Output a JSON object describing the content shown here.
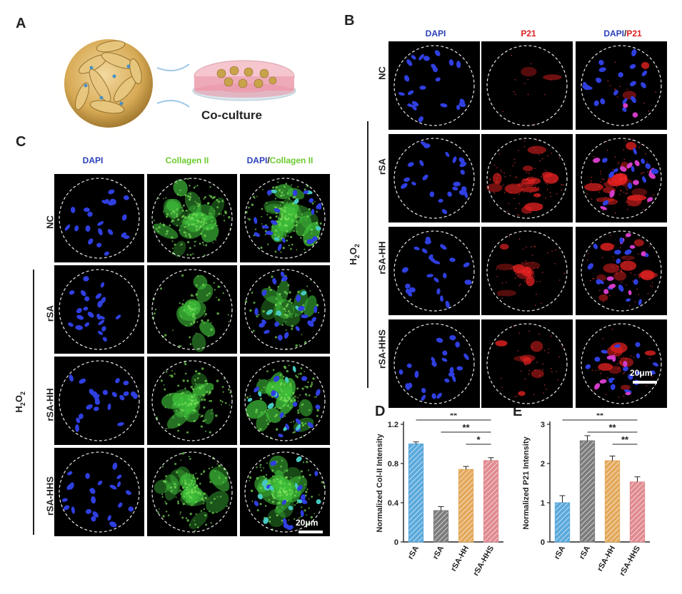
{
  "panel_labels": {
    "a": "A",
    "b": "B",
    "c": "C",
    "d": "D",
    "e": "E"
  },
  "panel_a": {
    "caption": "Co-culture"
  },
  "panel_b": {
    "channels": [
      "DAPI",
      "P21",
      "DAPI/P21"
    ],
    "channel_split": {
      "first": "DAPI",
      "sep": "/",
      "second": "P21"
    },
    "rows": [
      "NC",
      "rSA",
      "rSA-HH",
      "rSA-HHS"
    ],
    "group_label": "H2O2",
    "scale_bar": "20μm"
  },
  "panel_c": {
    "channels": [
      "DAPI",
      "Collagen II",
      "DAPI/Collagen II"
    ],
    "channel_split": {
      "first": "DAPI",
      "sep": "/",
      "second": "Collagen II"
    },
    "rows": [
      "NC",
      "rSA",
      "rSA-HH",
      "rSA-HHS"
    ],
    "group_label": "H2O2",
    "scale_bar": "20μm"
  },
  "colors": {
    "dapi": "#2a3fb8",
    "p21": "#e02020",
    "collagen": "#6ccb2f",
    "bar_blue": "#5aa9dc",
    "bar_gray": "#7c7c7c",
    "bar_orange": "#e3a85a",
    "bar_red": "#e08a8f"
  },
  "chart_data": [
    {
      "type": "bar",
      "panel": "D",
      "categories": [
        "rSA",
        "rSA",
        "rSA-HH",
        "rSA-HHS"
      ],
      "values": [
        1.0,
        0.32,
        0.74,
        0.83
      ],
      "errors": [
        0.02,
        0.04,
        0.03,
        0.03
      ],
      "ylabel": "Normalized Col-II Intensity",
      "ylim": [
        0,
        1.2
      ],
      "yticks": [
        0,
        0.4,
        0.8,
        1.2
      ],
      "ytick_labels": [
        "0",
        "0.4",
        "0.8",
        "1.2"
      ],
      "significance": [
        {
          "from": 0,
          "to": 3,
          "label": "**"
        },
        {
          "from": 1,
          "to": 3,
          "label": "**"
        },
        {
          "from": 2,
          "to": 3,
          "label": "*"
        }
      ]
    },
    {
      "type": "bar",
      "panel": "E",
      "categories": [
        "rSA",
        "rSA",
        "rSA-HH",
        "rSA-HHS"
      ],
      "values": [
        1.0,
        2.58,
        2.07,
        1.53
      ],
      "errors": [
        0.18,
        0.13,
        0.12,
        0.13
      ],
      "ylabel": "Normalized P21 Intensity",
      "ylim": [
        0,
        3
      ],
      "yticks": [
        0,
        1,
        2,
        3
      ],
      "ytick_labels": [
        "0",
        "1",
        "2",
        "3"
      ],
      "significance": [
        {
          "from": 0,
          "to": 3,
          "label": "**"
        },
        {
          "from": 1,
          "to": 3,
          "label": "**"
        },
        {
          "from": 2,
          "to": 3,
          "label": "**"
        }
      ]
    }
  ]
}
